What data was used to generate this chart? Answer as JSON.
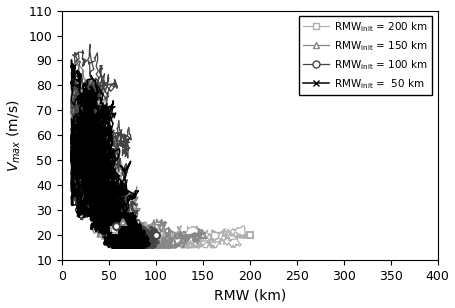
{
  "xlabel": "RMW (km)",
  "ylabel": "$V_{max}$ (m/s)",
  "xlim": [
    0,
    400
  ],
  "ylim": [
    10,
    110
  ],
  "xticks": [
    0,
    50,
    100,
    150,
    200,
    250,
    300,
    350,
    400
  ],
  "yticks": [
    10,
    20,
    30,
    40,
    50,
    60,
    70,
    80,
    90,
    100,
    110
  ],
  "series": [
    {
      "rmw_init": 200,
      "color": "#b0b0b0",
      "marker": "s",
      "label": "RMW$_{\\mathrm{init}}$ = 200 km",
      "lw": 0.9,
      "n_runs": 5
    },
    {
      "rmw_init": 150,
      "color": "#888888",
      "marker": "^",
      "label": "RMW$_{\\mathrm{init}}$ = 150 km",
      "lw": 0.9,
      "n_runs": 5
    },
    {
      "rmw_init": 100,
      "color": "#444444",
      "marker": "o",
      "label": "RMW$_{\\mathrm{init}}$ = 100 km",
      "lw": 0.9,
      "n_runs": 5
    },
    {
      "rmw_init": 50,
      "color": "#000000",
      "marker": "x",
      "label": "RMW$_{\\mathrm{init}}$ =  50 km",
      "lw": 1.1,
      "n_runs": 5
    }
  ],
  "figsize": [
    4.55,
    3.08
  ],
  "dpi": 100
}
